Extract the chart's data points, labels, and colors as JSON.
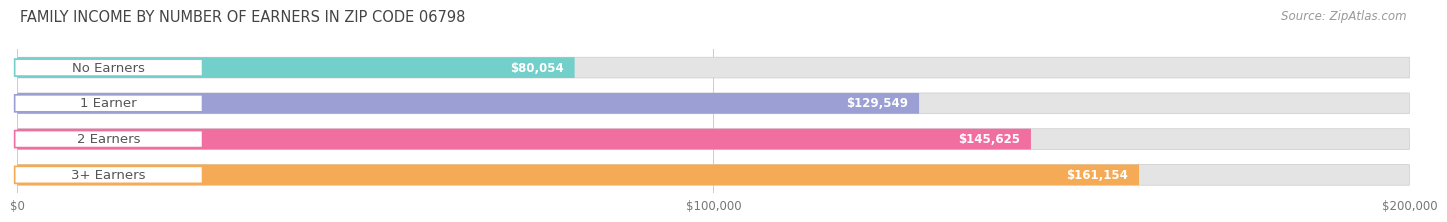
{
  "title": "FAMILY INCOME BY NUMBER OF EARNERS IN ZIP CODE 06798",
  "source": "Source: ZipAtlas.com",
  "categories": [
    "No Earners",
    "1 Earner",
    "2 Earners",
    "3+ Earners"
  ],
  "values": [
    80054,
    129549,
    145625,
    161154
  ],
  "value_labels": [
    "$80,054",
    "$129,549",
    "$145,625",
    "$161,154"
  ],
  "bar_colors": [
    "#72cfc9",
    "#9b9fd4",
    "#f06fa0",
    "#f5aa55"
  ],
  "xlim": [
    0,
    200000
  ],
  "xtick_labels": [
    "$0",
    "$100,000",
    "$200,000"
  ],
  "xtick_values": [
    0,
    100000,
    200000
  ],
  "background_color": "#f5f5f5",
  "bar_bg_color": "#e4e4e4",
  "title_fontsize": 10.5,
  "source_fontsize": 8.5,
  "label_fontsize": 9.5,
  "value_fontsize": 8.5,
  "tick_fontsize": 8.5
}
